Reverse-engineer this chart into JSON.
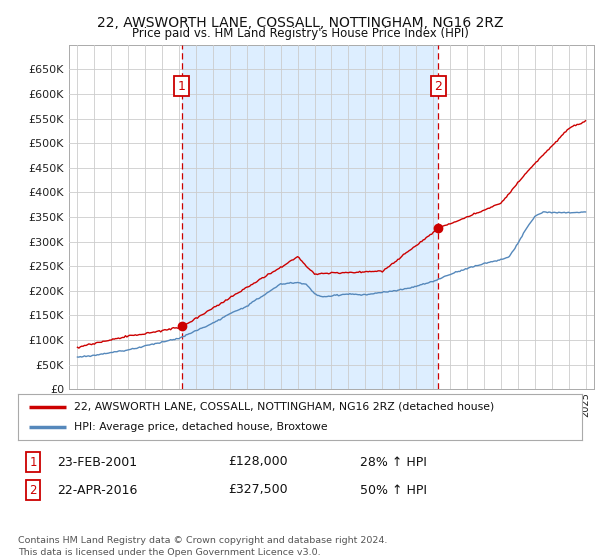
{
  "title": "22, AWSWORTH LANE, COSSALL, NOTTINGHAM, NG16 2RZ",
  "subtitle": "Price paid vs. HM Land Registry's House Price Index (HPI)",
  "legend_label_red": "22, AWSWORTH LANE, COSSALL, NOTTINGHAM, NG16 2RZ (detached house)",
  "legend_label_blue": "HPI: Average price, detached house, Broxtowe",
  "annotation1_date": "23-FEB-2001",
  "annotation1_price": "£128,000",
  "annotation1_pct": "28% ↑ HPI",
  "annotation2_date": "22-APR-2016",
  "annotation2_price": "£327,500",
  "annotation2_pct": "50% ↑ HPI",
  "footer": "Contains HM Land Registry data © Crown copyright and database right 2024.\nThis data is licensed under the Open Government Licence v3.0.",
  "sale1_x": 2001.15,
  "sale1_y": 128000,
  "sale2_x": 2016.3,
  "sale2_y": 327500,
  "ylim_max": 700000,
  "xlim": [
    1994.5,
    2025.5
  ],
  "ytick_values": [
    0,
    50000,
    100000,
    150000,
    200000,
    250000,
    300000,
    350000,
    400000,
    450000,
    500000,
    550000,
    600000,
    650000
  ],
  "background_color": "#ffffff",
  "grid_color": "#cccccc",
  "red_color": "#cc0000",
  "blue_color": "#5588bb",
  "shade_color": "#ddeeff"
}
